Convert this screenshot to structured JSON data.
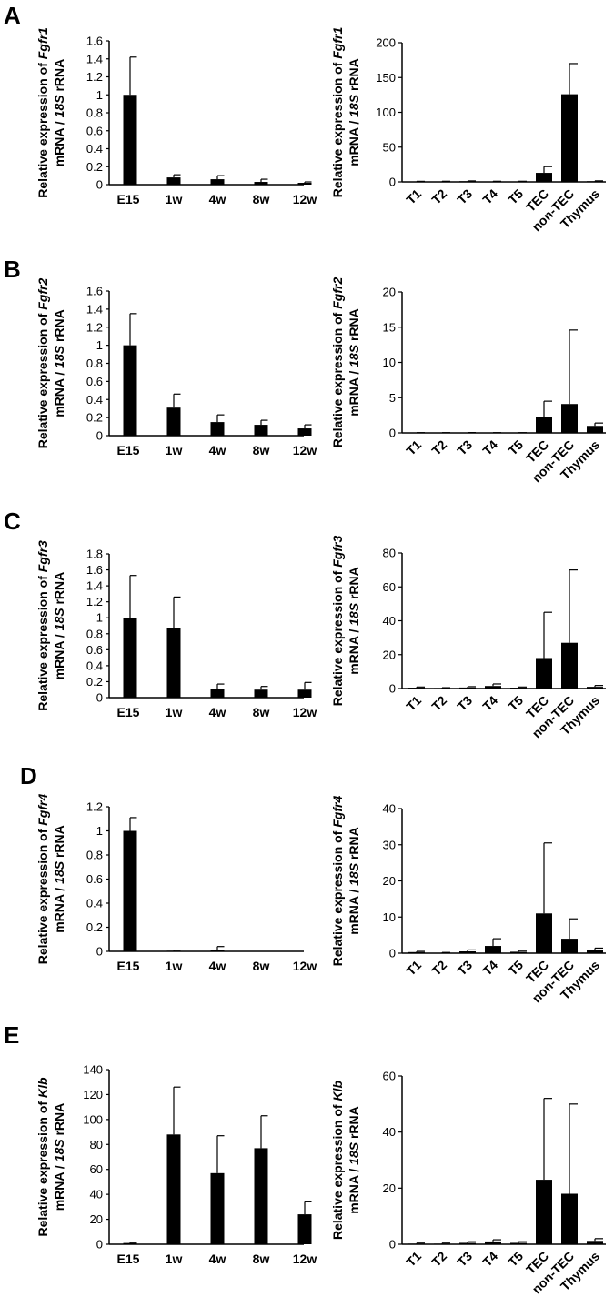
{
  "chart_data": [
    {
      "panel": "A",
      "type": "bar",
      "ylabel_line1_prefix": "Relative expression of ",
      "ylabel_line1_gene": "Fgfr1",
      "ylabel_line2_gene": "mRNA / ",
      "ylabel_line2_ital": "18S",
      "ylabel_line2_suffix": " rRNA",
      "categories": [
        "E15",
        "1w",
        "4w",
        "8w",
        "12w"
      ],
      "values": [
        1.0,
        0.08,
        0.06,
        0.03,
        0.02
      ],
      "errors": [
        0.42,
        0.03,
        0.04,
        0.03,
        0.01
      ],
      "yticks": [
        "0",
        "0.2",
        "0.4",
        "0.6",
        "0.8",
        "1",
        "1.2",
        "1.4",
        "1.6"
      ],
      "ylim": [
        0,
        1.6
      ],
      "rotated_labels": false
    },
    {
      "panel": "A",
      "type": "bar",
      "ylabel_line1_prefix": "Relative expression of ",
      "ylabel_line1_gene": "Fgfr1",
      "ylabel_line2_gene": "mRNA / ",
      "ylabel_line2_ital": "18S",
      "ylabel_line2_suffix": " rRNA",
      "categories": [
        "T1",
        "T2",
        "T3",
        "T4",
        "T5",
        "TEC",
        "non-TEC",
        "Thymus"
      ],
      "values": [
        0.5,
        0.6,
        1.0,
        0.6,
        0.6,
        13,
        126,
        1
      ],
      "errors": [
        0.3,
        0.3,
        0.4,
        0.3,
        0.3,
        9,
        44,
        0.5
      ],
      "yticks": [
        "0",
        "50",
        "100",
        "150",
        "200"
      ],
      "ylim": [
        0,
        200
      ],
      "rotated_labels": true
    },
    {
      "panel": "B",
      "type": "bar",
      "ylabel_line1_prefix": "Relative expression of ",
      "ylabel_line1_gene": "Fgfr2",
      "ylabel_line2_gene": "mRNA / ",
      "ylabel_line2_ital": "18S",
      "ylabel_line2_suffix": " rRNA",
      "categories": [
        "E15",
        "1w",
        "4w",
        "8w",
        "12w"
      ],
      "values": [
        1.0,
        0.31,
        0.15,
        0.12,
        0.08
      ],
      "errors": [
        0.35,
        0.15,
        0.08,
        0.05,
        0.04
      ],
      "yticks": [
        "0",
        "0.2",
        "0.4",
        "0.6",
        "0.8",
        "1",
        "1.2",
        "1.4",
        "1.6"
      ],
      "ylim": [
        0,
        1.6
      ],
      "rotated_labels": false
    },
    {
      "panel": "B",
      "type": "bar",
      "ylabel_line1_prefix": "Relative expression of ",
      "ylabel_line1_gene": "Fgfr2",
      "ylabel_line2_gene": "mRNA / ",
      "ylabel_line2_ital": "18S",
      "ylabel_line2_suffix": " rRNA",
      "categories": [
        "T1",
        "T2",
        "T3",
        "T4",
        "T5",
        "TEC",
        "non-TEC",
        "Thymus"
      ],
      "values": [
        0.02,
        0.02,
        0.03,
        0.02,
        0.02,
        2.2,
        4.1,
        1.0
      ],
      "errors": [
        0.02,
        0.02,
        0.02,
        0.02,
        0.02,
        2.3,
        10.5,
        0.4
      ],
      "yticks": [
        "0",
        "5",
        "10",
        "15",
        "20"
      ],
      "ylim": [
        0,
        20
      ],
      "rotated_labels": true
    },
    {
      "panel": "C",
      "type": "bar",
      "ylabel_line1_prefix": "Relative expression of ",
      "ylabel_line1_gene": "Fgfr3",
      "ylabel_line2_gene": "mRNA / ",
      "ylabel_line2_ital": "18S",
      "ylabel_line2_suffix": " rRNA",
      "categories": [
        "E15",
        "1w",
        "4w",
        "8w",
        "12w"
      ],
      "values": [
        1.0,
        0.87,
        0.11,
        0.1,
        0.1
      ],
      "errors": [
        0.53,
        0.39,
        0.06,
        0.04,
        0.09
      ],
      "yticks": [
        "0",
        "0.2",
        "0.4",
        "0.6",
        "0.8",
        "1",
        "1.2",
        "1.4",
        "1.6",
        "1.8"
      ],
      "ylim": [
        0,
        1.8
      ],
      "rotated_labels": false
    },
    {
      "panel": "C",
      "type": "bar",
      "ylabel_line1_prefix": "Relative expression of ",
      "ylabel_line1_gene": "Fgfr3",
      "ylabel_line2_gene": "mRNA / ",
      "ylabel_line2_ital": "18S",
      "ylabel_line2_suffix": " rRNA",
      "categories": [
        "T1",
        "T2",
        "T3",
        "T4",
        "T5",
        "TEC",
        "non-TEC",
        "Thymus"
      ],
      "values": [
        0.5,
        0.3,
        0.6,
        1.5,
        0.5,
        18,
        27,
        1.0
      ],
      "errors": [
        0.4,
        0.2,
        0.5,
        1.2,
        0.4,
        27,
        43,
        0.8
      ],
      "yticks": [
        "0",
        "20",
        "40",
        "60",
        "80"
      ],
      "ylim": [
        0,
        80
      ],
      "rotated_labels": true
    },
    {
      "panel": "D",
      "type": "bar",
      "ylabel_line1_prefix": "Relative expression of ",
      "ylabel_line1_gene": "Fgfr4",
      "ylabel_line2_gene": "mRNA / ",
      "ylabel_line2_ital": "18S",
      "ylabel_line2_suffix": " rRNA",
      "categories": [
        "E15",
        "1w",
        "4w",
        "8w",
        "12w"
      ],
      "values": [
        1.0,
        0.005,
        0.01,
        0.0,
        0.0
      ],
      "errors": [
        0.11,
        0.005,
        0.03,
        0.0,
        0.0
      ],
      "yticks": [
        "0",
        "0.2",
        "0.4",
        "0.6",
        "0.8",
        "1",
        "1.2"
      ],
      "ylim": [
        0,
        1.2
      ],
      "rotated_labels": false
    },
    {
      "panel": "D",
      "type": "bar",
      "ylabel_line1_prefix": "Relative expression of ",
      "ylabel_line1_gene": "Fgfr4",
      "ylabel_line2_gene": "mRNA / ",
      "ylabel_line2_ital": "18S",
      "ylabel_line2_suffix": " rRNA",
      "categories": [
        "T1",
        "T2",
        "T3",
        "T4",
        "T5",
        "TEC",
        "non-TEC",
        "Thymus"
      ],
      "values": [
        0.3,
        0.1,
        0.5,
        2.0,
        0.4,
        11,
        4.0,
        0.8
      ],
      "errors": [
        0.2,
        0.1,
        0.4,
        2.0,
        0.3,
        19.5,
        5.5,
        0.6
      ],
      "yticks": [
        "0",
        "10",
        "20",
        "30",
        "40"
      ],
      "ylim": [
        0,
        40
      ],
      "rotated_labels": true
    },
    {
      "panel": "E",
      "type": "bar",
      "ylabel_line1_prefix": "Relative expression of ",
      "ylabel_line1_gene": "Klb",
      "ylabel_line2_gene": "mRNA / ",
      "ylabel_line2_ital": "18S",
      "ylabel_line2_suffix": " rRNA",
      "categories": [
        "E15",
        "1w",
        "4w",
        "8w",
        "12w"
      ],
      "values": [
        1.0,
        88,
        57,
        77,
        24
      ],
      "errors": [
        0.5,
        38,
        30,
        26,
        10
      ],
      "yticks": [
        "0",
        "20",
        "40",
        "60",
        "80",
        "100",
        "120",
        "140"
      ],
      "ylim": [
        0,
        140
      ],
      "rotated_labels": false
    },
    {
      "panel": "E",
      "type": "bar",
      "ylabel_line1_prefix": "Relative expression of ",
      "ylabel_line1_gene": "Klb",
      "ylabel_line2_gene": "mRNA / ",
      "ylabel_line2_ital": "18S",
      "ylabel_line2_suffix": " rRNA",
      "categories": [
        "T1",
        "T2",
        "T3",
        "T4",
        "T5",
        "TEC",
        "non-TEC",
        "Thymus"
      ],
      "values": [
        0.2,
        0.2,
        0.5,
        1.0,
        0.5,
        23,
        18,
        1.2
      ],
      "errors": [
        0.2,
        0.2,
        0.4,
        0.6,
        0.4,
        29,
        32,
        0.8
      ],
      "yticks": [
        "0",
        "20",
        "40",
        "60"
      ],
      "ylim": [
        0,
        60
      ],
      "rotated_labels": true
    }
  ]
}
